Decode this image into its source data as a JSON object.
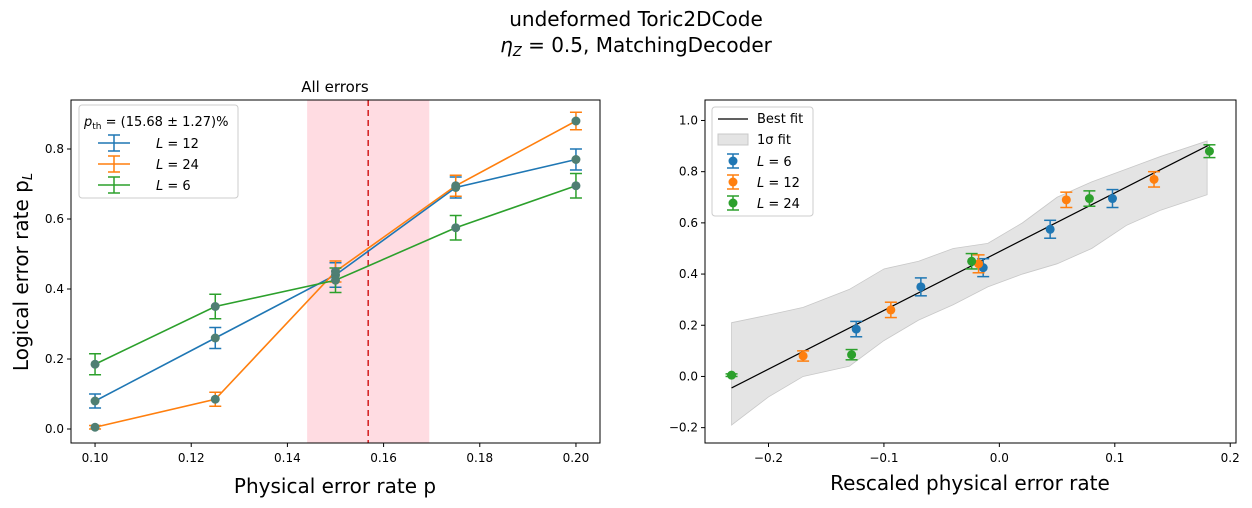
{
  "figure": {
    "title_line1": "undeformed Toric2DCode",
    "title_line2_prefix": "η",
    "title_line2_sub": "Z",
    "title_line2_rest": " = 0.5, MatchingDecoder"
  },
  "chart_data": [
    {
      "type": "line",
      "title": "All errors",
      "xlabel": "Physical error rate p",
      "ylabel": "Logical error rate p",
      "ylabel_sub": "L",
      "xlim": [
        0.095,
        0.205
      ],
      "ylim": [
        -0.04,
        0.94
      ],
      "xticks": [
        0.1,
        0.12,
        0.14,
        0.16,
        0.18,
        0.2
      ],
      "xtick_labels": [
        "0.10",
        "0.12",
        "0.14",
        "0.16",
        "0.18",
        "0.20"
      ],
      "yticks": [
        0.0,
        0.2,
        0.4,
        0.6,
        0.8
      ],
      "ytick_labels": [
        "0.0",
        "0.2",
        "0.4",
        "0.6",
        "0.8"
      ],
      "grid": false,
      "legend_placement": "upper-left",
      "legend_title": "p_th = (15.68 ± 1.27)%",
      "legend_title_parts": {
        "p": "p",
        "sub": "th",
        "rest": " = (15.68 ± 1.27)%"
      },
      "threshold": {
        "value": 0.1568,
        "error": 0.0127,
        "line_color": "#d62728",
        "band_color": "#ffc0cb"
      },
      "x": [
        0.1,
        0.125,
        0.15,
        0.175,
        0.2
      ],
      "series": [
        {
          "name": "L = 12",
          "name_var": "L",
          "name_val": " = 12",
          "color": "#1f77b4",
          "values": [
            0.08,
            0.26,
            0.44,
            0.69,
            0.77
          ],
          "errors": [
            0.02,
            0.03,
            0.035,
            0.03,
            0.03
          ]
        },
        {
          "name": "L = 24",
          "name_var": "L",
          "name_val": " = 24",
          "color": "#ff7f0e",
          "values": [
            0.005,
            0.085,
            0.45,
            0.695,
            0.88
          ],
          "errors": [
            0.005,
            0.02,
            0.03,
            0.03,
            0.025
          ]
        },
        {
          "name": "L = 6",
          "name_var": "L",
          "name_val": " = 6",
          "color": "#2ca02c",
          "values": [
            0.185,
            0.35,
            0.425,
            0.575,
            0.695
          ],
          "errors": [
            0.03,
            0.035,
            0.035,
            0.035,
            0.035
          ]
        }
      ],
      "marker_color": "#4f7f73"
    },
    {
      "type": "scatter",
      "title": "",
      "xlabel": "Rescaled physical error rate",
      "ylabel": "",
      "xlim": [
        -0.255,
        0.205
      ],
      "ylim": [
        -0.26,
        1.08
      ],
      "xticks": [
        -0.2,
        -0.1,
        0.0,
        0.1,
        0.2
      ],
      "xtick_labels": [
        "−0.2",
        "−0.1",
        "0.0",
        "0.1",
        "0.2"
      ],
      "yticks": [
        -0.2,
        0.0,
        0.2,
        0.4,
        0.6,
        0.8,
        1.0
      ],
      "ytick_labels": [
        "−0.2",
        "0.0",
        "0.2",
        "0.4",
        "0.6",
        "0.8",
        "1.0"
      ],
      "grid": false,
      "legend_placement": "upper-left",
      "fit": {
        "name": "Best fit",
        "color": "#000000",
        "x": [
          -0.232,
          0.182
        ],
        "y": [
          -0.045,
          0.905
        ]
      },
      "fit_band": {
        "name": "1σ fit",
        "color": "#d9d9d9",
        "x": [
          -0.232,
          -0.2,
          -0.17,
          -0.13,
          -0.1,
          -0.07,
          -0.04,
          -0.01,
          0.02,
          0.05,
          0.08,
          0.11,
          0.14,
          0.18
        ],
        "upper": [
          0.21,
          0.24,
          0.27,
          0.34,
          0.42,
          0.45,
          0.5,
          0.52,
          0.6,
          0.7,
          0.76,
          0.81,
          0.86,
          0.92
        ],
        "lower": [
          -0.19,
          -0.08,
          0.0,
          0.04,
          0.14,
          0.22,
          0.28,
          0.35,
          0.4,
          0.44,
          0.5,
          0.59,
          0.65,
          0.71
        ]
      },
      "series": [
        {
          "name": "L = 6",
          "name_var": "L",
          "name_val": " = 6",
          "color": "#1f77b4",
          "x": [
            -0.124,
            -0.068,
            -0.014,
            0.044,
            0.098
          ],
          "y": [
            0.185,
            0.35,
            0.425,
            0.575,
            0.695
          ],
          "errors": [
            0.03,
            0.035,
            0.035,
            0.035,
            0.035
          ]
        },
        {
          "name": "L = 12",
          "name_var": "L",
          "name_val": " = 12",
          "color": "#ff7f0e",
          "x": [
            -0.17,
            -0.094,
            -0.018,
            0.058,
            0.134
          ],
          "y": [
            0.08,
            0.26,
            0.44,
            0.69,
            0.77
          ],
          "errors": [
            0.02,
            0.03,
            0.035,
            0.03,
            0.03
          ]
        },
        {
          "name": "L = 24",
          "name_var": "L",
          "name_val": " = 24",
          "color": "#2ca02c",
          "x": [
            -0.232,
            -0.128,
            -0.024,
            0.078,
            0.182
          ],
          "y": [
            0.005,
            0.085,
            0.45,
            0.695,
            0.88
          ],
          "errors": [
            0.005,
            0.02,
            0.03,
            0.03,
            0.025
          ]
        }
      ]
    }
  ]
}
